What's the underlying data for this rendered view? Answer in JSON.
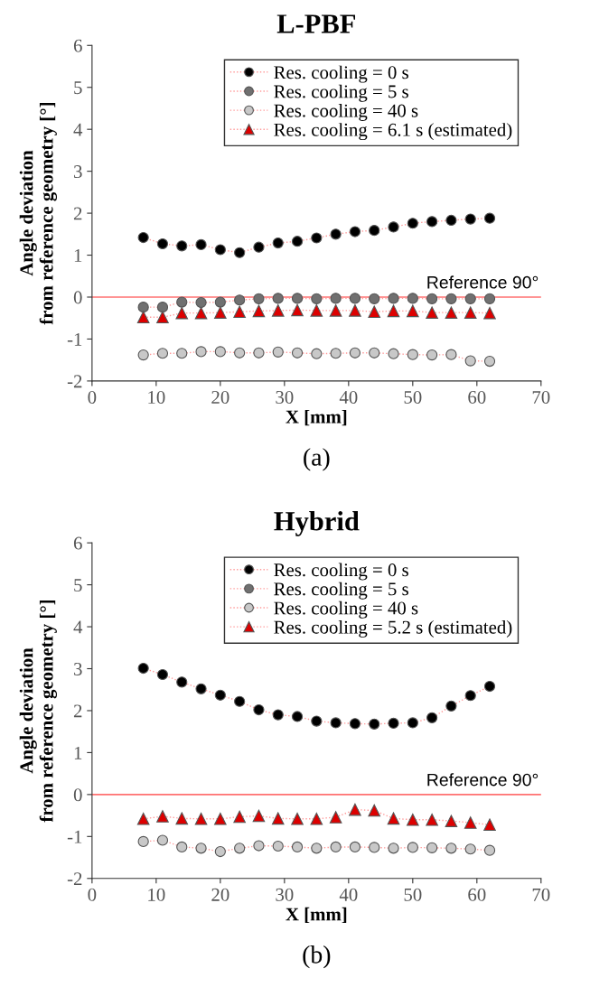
{
  "chart_data": [
    {
      "type": "line",
      "title": "L-PBF",
      "xlabel": "X [mm]",
      "ylabel": "Angle deviation\nfrom reference geometry [°]",
      "x": [
        8,
        11,
        14,
        17,
        20,
        23,
        26,
        29,
        32,
        35,
        38,
        41,
        44,
        47,
        50,
        53,
        56,
        59,
        62
      ],
      "xlim": [
        0,
        70
      ],
      "xticks": [
        0,
        10,
        20,
        30,
        40,
        50,
        60,
        70
      ],
      "ylim": [
        -2,
        6
      ],
      "yticks": [
        -2,
        -1,
        0,
        1,
        2,
        3,
        4,
        5,
        6
      ],
      "grid": false,
      "legend": "top right",
      "line_style": "dotted",
      "series": [
        {
          "name": "Res. cooling = 0 s",
          "color": "#000000",
          "marker": "circle",
          "values": [
            1.42,
            1.27,
            1.22,
            1.25,
            1.13,
            1.06,
            1.19,
            1.29,
            1.33,
            1.41,
            1.5,
            1.56,
            1.59,
            1.67,
            1.76,
            1.8,
            1.83,
            1.86,
            1.88
          ]
        },
        {
          "name": "Res. cooling = 5 s",
          "color": "#707070",
          "marker": "circle",
          "values": [
            -0.24,
            -0.24,
            -0.12,
            -0.13,
            -0.12,
            -0.07,
            -0.04,
            -0.03,
            -0.03,
            -0.04,
            -0.03,
            -0.03,
            -0.04,
            -0.03,
            -0.03,
            -0.04,
            -0.04,
            -0.04,
            -0.04
          ]
        },
        {
          "name": "Res. cooling = 40 s",
          "color": "#c8c8c8",
          "marker": "circle",
          "values": [
            -1.38,
            -1.34,
            -1.34,
            -1.3,
            -1.3,
            -1.33,
            -1.33,
            -1.31,
            -1.33,
            -1.35,
            -1.34,
            -1.33,
            -1.33,
            -1.35,
            -1.37,
            -1.38,
            -1.37,
            -1.52,
            -1.53
          ]
        },
        {
          "name": "Res. cooling = 6.1 s (estimated)",
          "color": "#dd0000",
          "marker": "triangle",
          "values": [
            -0.48,
            -0.48,
            -0.38,
            -0.38,
            -0.37,
            -0.35,
            -0.33,
            -0.32,
            -0.31,
            -0.32,
            -0.32,
            -0.32,
            -0.35,
            -0.33,
            -0.33,
            -0.37,
            -0.37,
            -0.37,
            -0.38
          ]
        }
      ],
      "ref_lines": [
        {
          "axis": "y",
          "value": 0,
          "label": "Reference 90°",
          "color": "#ff7070"
        }
      ],
      "annotations": [
        "(a)"
      ]
    },
    {
      "type": "line",
      "title": "Hybrid",
      "xlabel": "X [mm]",
      "ylabel": "Angle deviation\nfrom reference geometry [°]",
      "x": [
        8,
        11,
        14,
        17,
        20,
        23,
        26,
        29,
        32,
        35,
        38,
        41,
        44,
        47,
        50,
        53,
        56,
        59,
        62
      ],
      "xlim": [
        0,
        70
      ],
      "xticks": [
        0,
        10,
        20,
        30,
        40,
        50,
        60,
        70
      ],
      "ylim": [
        -2,
        6
      ],
      "yticks": [
        -2,
        -1,
        0,
        1,
        2,
        3,
        4,
        5,
        6
      ],
      "grid": false,
      "legend": "top right",
      "line_style": "dotted",
      "series": [
        {
          "name": "Res. cooling = 0 s",
          "color": "#000000",
          "marker": "circle",
          "values": [
            3.01,
            2.86,
            2.68,
            2.52,
            2.37,
            2.22,
            2.02,
            1.9,
            1.86,
            1.75,
            1.71,
            1.69,
            1.68,
            1.7,
            1.71,
            1.83,
            2.11,
            2.36,
            2.58
          ]
        },
        {
          "name": "Res. cooling = 5 s",
          "color": "#707070",
          "marker": "circle",
          "values": [
            null,
            null,
            null,
            null,
            null,
            null,
            null,
            null,
            null,
            null,
            null,
            null,
            null,
            null,
            null,
            null,
            null,
            null,
            null
          ]
        },
        {
          "name": "Res. cooling = 40 s",
          "color": "#c8c8c8",
          "marker": "circle",
          "values": [
            -1.12,
            -1.09,
            -1.25,
            -1.28,
            -1.36,
            -1.28,
            -1.22,
            -1.23,
            -1.25,
            -1.28,
            -1.25,
            -1.25,
            -1.26,
            -1.28,
            -1.26,
            -1.27,
            -1.28,
            -1.3,
            -1.33
          ]
        },
        {
          "name": "Res. cooling = 5.2 s (estimated)",
          "color": "#dd0000",
          "marker": "triangle",
          "values": [
            -0.58,
            -0.52,
            -0.57,
            -0.58,
            -0.58,
            -0.53,
            -0.51,
            -0.57,
            -0.58,
            -0.58,
            -0.54,
            -0.36,
            -0.38,
            -0.57,
            -0.6,
            -0.6,
            -0.63,
            -0.67,
            -0.72
          ]
        }
      ],
      "ref_lines": [
        {
          "axis": "y",
          "value": 0,
          "label": "Reference 90°",
          "color": "#ff7070"
        }
      ],
      "annotations": [
        "(b)"
      ]
    }
  ]
}
